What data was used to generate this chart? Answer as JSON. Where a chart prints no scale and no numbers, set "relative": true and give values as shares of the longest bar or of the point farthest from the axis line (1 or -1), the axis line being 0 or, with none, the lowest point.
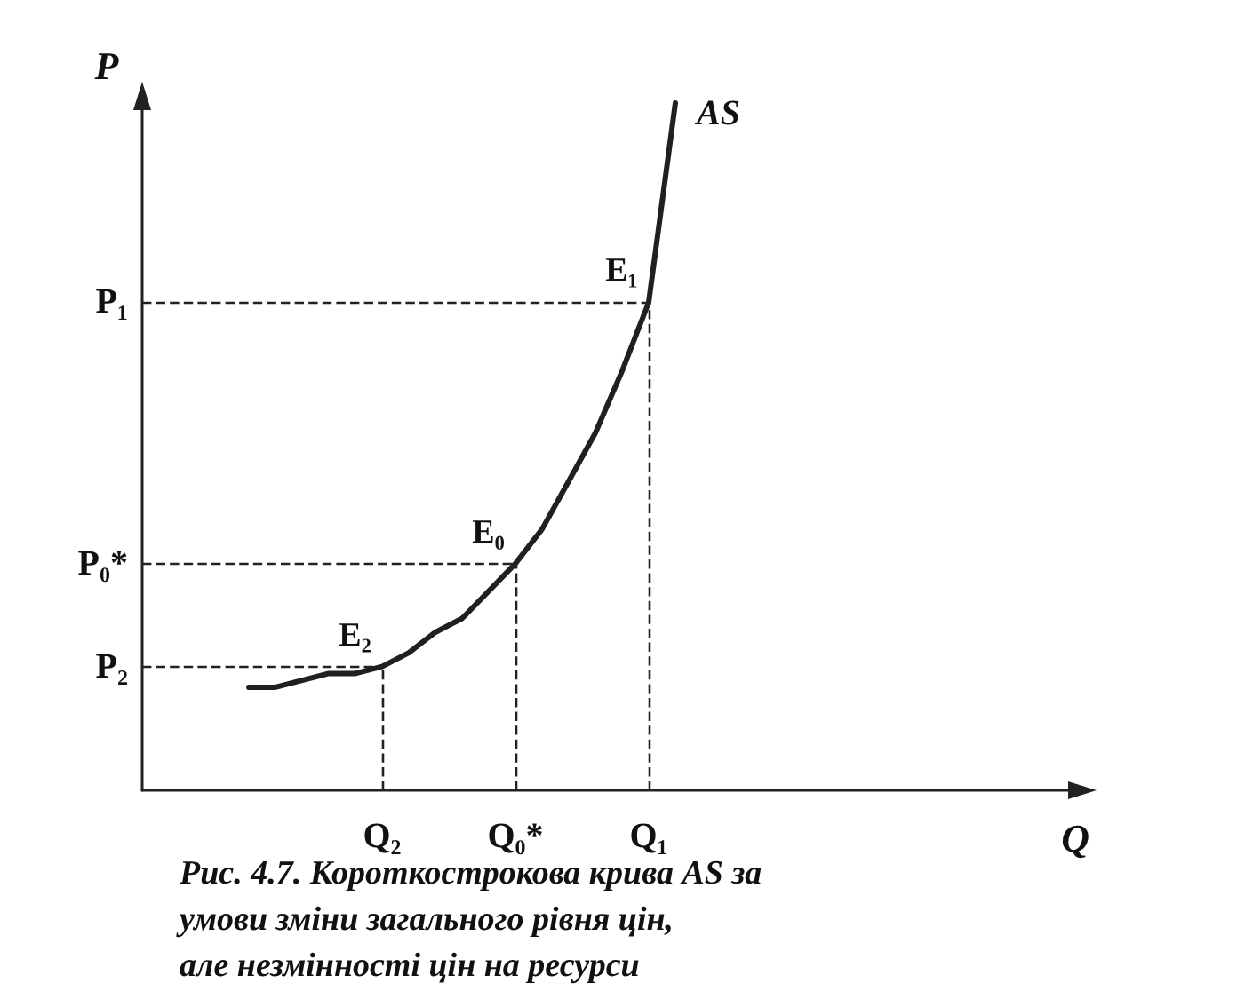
{
  "chart_data": {
    "type": "line",
    "relative": true,
    "title": "Рис. 4.7. Короткострокова крива AS за умови зміни загального рівня цін, але незмінності цін на ресурси",
    "xlabel": "Q",
    "ylabel": "P",
    "marker": "none",
    "line_style": "solid",
    "grid": false,
    "legend": false,
    "categories": [
      null,
      null,
      null,
      null,
      null,
      null,
      null,
      null,
      null,
      "Q₂",
      null,
      null,
      null,
      null,
      "Q₀*",
      null,
      null,
      null,
      null,
      "Q₁",
      null,
      null,
      null,
      null,
      null,
      null,
      null,
      null,
      null,
      null,
      null,
      null,
      null,
      null,
      null,
      null
    ],
    "series": [
      {
        "name": "AS",
        "color": "#231f20",
        "values": [
          null,
          null,
          null,
          null,
          0.15,
          0.15,
          0.16,
          0.17,
          0.17,
          0.18,
          0.2,
          0.23,
          0.25,
          0.29,
          0.33,
          0.38,
          0.45,
          0.52,
          0.61,
          0.71,
          1,
          null,
          null,
          null,
          null,
          null,
          null,
          null,
          null,
          null,
          null,
          null,
          null,
          null,
          null,
          null
        ]
      }
    ],
    "ref_lines": [
      {
        "axis": "y",
        "value": 0.71,
        "label": "P₁",
        "line_style": "dashed"
      },
      {
        "axis": "y",
        "value": 0.33,
        "label": "P₀*",
        "line_style": "dashed"
      },
      {
        "axis": "y",
        "value": 0.18,
        "label": "P₂",
        "line_style": "dashed"
      },
      {
        "axis": "x",
        "value": "Q₁",
        "label": null,
        "line_style": "dashed"
      },
      {
        "axis": "x",
        "value": "Q₀*",
        "label": null,
        "line_style": "dashed"
      },
      {
        "axis": "x",
        "value": "Q₂",
        "label": null,
        "line_style": "dashed"
      }
    ],
    "annotations": [
      {
        "text": "E₁",
        "x": "Q₁",
        "y": 0.71
      },
      {
        "text": "E₀",
        "x": "Q₀*",
        "y": 0.33
      },
      {
        "text": "E₂",
        "x": "Q₂",
        "y": 0.18
      }
    ]
  }
}
